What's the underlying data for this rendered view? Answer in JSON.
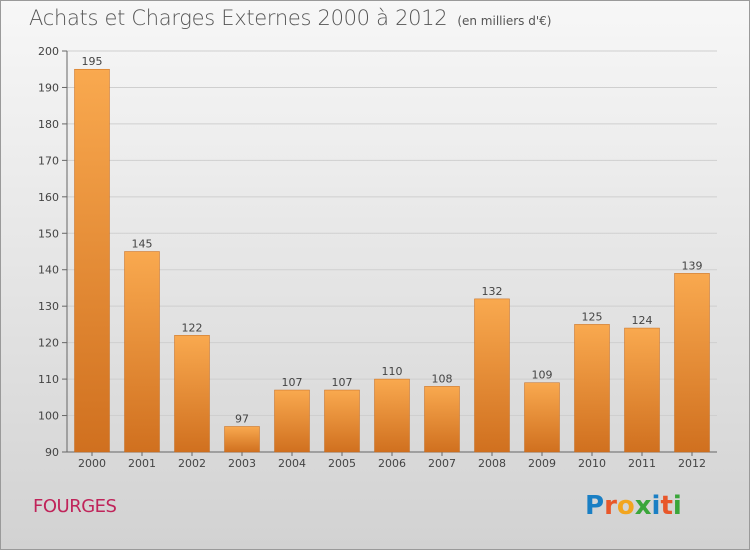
{
  "title": "Achats et Charges Externes 2000 à 2012",
  "unit": "(en milliers d'€)",
  "town": "FOURGES",
  "logo": {
    "text": "Proxiti",
    "letters": [
      {
        "ch": "P",
        "color": "#1a7fc4"
      },
      {
        "ch": "r",
        "color": "#e8572a"
      },
      {
        "ch": "o",
        "color": "#f2a51f"
      },
      {
        "ch": "x",
        "color": "#3aa63a"
      },
      {
        "ch": "i",
        "color": "#1a7fc4"
      },
      {
        "ch": "t",
        "color": "#e8572a"
      },
      {
        "ch": "i",
        "color": "#3aa63a"
      }
    ]
  },
  "colors": {
    "bar_light": "#f9a94f",
    "bar_dark": "#d0701f",
    "grid": "#cfcfcf",
    "text": "#444444",
    "town": "#c0245a"
  },
  "chart_data": {
    "type": "bar",
    "categories": [
      "2000",
      "2001",
      "2002",
      "2003",
      "2004",
      "2005",
      "2006",
      "2007",
      "2008",
      "2009",
      "2010",
      "2011",
      "2012"
    ],
    "values": [
      195,
      145,
      122,
      97,
      107,
      107,
      110,
      108,
      132,
      109,
      125,
      124,
      139
    ],
    "ylim": [
      90,
      200
    ],
    "yticks": [
      90,
      100,
      110,
      120,
      130,
      140,
      150,
      160,
      170,
      180,
      190,
      200
    ],
    "grid": true,
    "legend": "none"
  }
}
